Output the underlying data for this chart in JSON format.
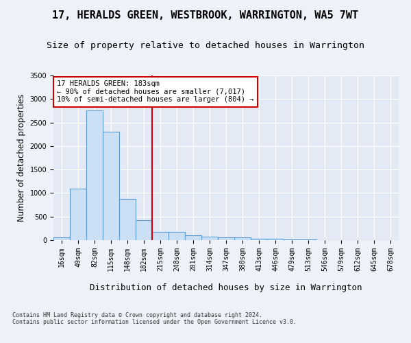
{
  "title": "17, HERALDS GREEN, WESTBROOK, WARRINGTON, WA5 7WT",
  "subtitle": "Size of property relative to detached houses in Warrington",
  "xlabel": "Distribution of detached houses by size in Warrington",
  "ylabel": "Number of detached properties",
  "bar_labels": [
    "16sqm",
    "49sqm",
    "82sqm",
    "115sqm",
    "148sqm",
    "182sqm",
    "215sqm",
    "248sqm",
    "281sqm",
    "314sqm",
    "347sqm",
    "380sqm",
    "413sqm",
    "446sqm",
    "479sqm",
    "513sqm",
    "546sqm",
    "579sqm",
    "612sqm",
    "645sqm",
    "678sqm"
  ],
  "bar_values": [
    60,
    1100,
    2750,
    2300,
    880,
    430,
    175,
    170,
    100,
    70,
    55,
    55,
    30,
    25,
    10,
    8,
    5,
    3,
    2,
    1,
    1
  ],
  "bar_color": "#cce0f5",
  "bar_edge_color": "#5b9bd5",
  "vline_x": 5.5,
  "vline_color": "#cc0000",
  "annotation_text": "17 HERALDS GREEN: 183sqm\n← 90% of detached houses are smaller (7,017)\n10% of semi-detached houses are larger (804) →",
  "annotation_box_color": "#ffffff",
  "annotation_box_edge": "#cc0000",
  "ylim": [
    0,
    3500
  ],
  "yticks": [
    0,
    500,
    1000,
    1500,
    2000,
    2500,
    3000,
    3500
  ],
  "title_fontsize": 11,
  "subtitle_fontsize": 9.5,
  "xlabel_fontsize": 9,
  "ylabel_fontsize": 8.5,
  "tick_fontsize": 7,
  "footer_text": "Contains HM Land Registry data © Crown copyright and database right 2024.\nContains public sector information licensed under the Open Government Licence v3.0.",
  "background_color": "#eef2f8",
  "grid_color": "#ffffff",
  "axes_background": "#e4eaf5"
}
